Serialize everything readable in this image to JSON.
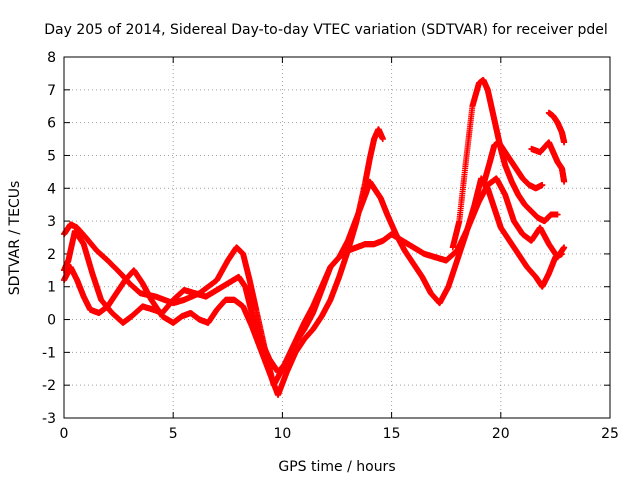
{
  "chart_data": {
    "type": "scatter",
    "title": "Day 205 of 2014, Sidereal Day-to-day VTEC variation (SDTVAR) for receiver pdel",
    "xlabel": "GPS time / hours",
    "ylabel": "SDTVAR / TECUs",
    "xlim": [
      0,
      25
    ],
    "ylim": [
      -3,
      8
    ],
    "xticks": [
      "0",
      "5",
      "10",
      "15",
      "20",
      "25"
    ],
    "yticks": [
      "-3",
      "-2",
      "-1",
      "0",
      "1",
      "2",
      "3",
      "4",
      "5",
      "6",
      "7",
      "8"
    ],
    "grid": true,
    "marker": "+",
    "color": "#ff0000",
    "series": [
      {
        "x": [
          0.0,
          0.3,
          0.6,
          1.0,
          1.5,
          2.0,
          2.6,
          3.0,
          3.5,
          4.2,
          5.0,
          5.5,
          6.2,
          7.0,
          7.5,
          7.9,
          8.2,
          8.5,
          8.8,
          9.2,
          9.6,
          10.0,
          10.5,
          11.0,
          11.4,
          11.8,
          12.2,
          12.6,
          13.0,
          13.4,
          13.8,
          14.2,
          14.6,
          15.0,
          15.5,
          16.0,
          16.5,
          17.0,
          17.5,
          18.0,
          18.5,
          19.0,
          19.4,
          19.8,
          20.2,
          20.6,
          21.0,
          21.4,
          21.8,
          22.2,
          22.6,
          22.9
        ],
        "y": [
          2.6,
          2.9,
          2.8,
          2.5,
          2.1,
          1.8,
          1.4,
          1.1,
          0.8,
          0.7,
          0.5,
          0.6,
          0.8,
          1.2,
          1.8,
          2.2,
          2.0,
          1.2,
          0.3,
          -0.9,
          -2.0,
          -1.5,
          -0.8,
          -0.1,
          0.4,
          1.0,
          1.6,
          1.9,
          2.1,
          2.2,
          2.3,
          2.3,
          2.4,
          2.6,
          2.4,
          2.2,
          2.0,
          1.9,
          1.8,
          2.1,
          2.8,
          3.6,
          4.1,
          4.3,
          3.8,
          3.0,
          2.6,
          2.4,
          2.8,
          2.3,
          1.9,
          2.2
        ]
      },
      {
        "x": [
          0.0,
          0.2,
          0.5,
          0.9,
          1.3,
          1.7,
          2.2,
          2.7,
          3.1,
          3.6,
          4.1,
          4.5,
          5.0,
          5.5,
          6.0,
          6.5,
          7.0,
          7.5,
          8.0,
          8.3,
          8.6,
          9.0,
          9.4,
          9.8,
          10.2,
          10.6,
          11.0,
          11.4,
          11.8,
          12.2,
          12.6,
          13.0,
          13.4,
          13.8,
          14.0,
          14.2,
          14.5,
          14.8,
          15.2,
          15.6,
          16.0,
          16.4,
          16.8,
          17.2,
          17.6,
          18.0,
          18.4,
          18.8,
          19.1,
          19.4,
          19.7,
          20.0,
          20.4,
          20.8,
          21.2,
          21.6,
          21.9,
          22.2,
          22.5,
          22.8
        ],
        "y": [
          1.5,
          1.8,
          2.7,
          2.3,
          1.4,
          0.6,
          0.2,
          -0.1,
          0.1,
          0.4,
          0.3,
          0.2,
          0.6,
          0.9,
          0.8,
          0.7,
          0.9,
          1.1,
          1.3,
          1.0,
          0.2,
          -0.6,
          -1.2,
          -1.6,
          -1.3,
          -0.7,
          -0.3,
          0.2,
          0.9,
          1.6,
          1.9,
          2.4,
          3.1,
          3.8,
          4.2,
          4.0,
          3.7,
          3.2,
          2.6,
          2.1,
          1.7,
          1.3,
          0.8,
          0.5,
          1.0,
          1.8,
          2.6,
          3.5,
          4.3,
          4.0,
          3.4,
          2.8,
          2.4,
          2.0,
          1.6,
          1.3,
          1.0,
          1.4,
          1.9,
          2.0
        ]
      },
      {
        "x": [
          0.0,
          0.3,
          0.6,
          0.9,
          1.2,
          1.6,
          2.0,
          2.4,
          2.8,
          3.2,
          3.6,
          4.0,
          4.5,
          5.0,
          5.4,
          5.8,
          6.2,
          6.6,
          7.0,
          7.4,
          7.8,
          8.2,
          8.6,
          9.0,
          9.4,
          9.8,
          10.2,
          10.6,
          11.0,
          11.4,
          11.8,
          12.2,
          12.6,
          13.0,
          13.4,
          13.8,
          14.0,
          14.2,
          14.4,
          14.6
        ],
        "y": [
          1.2,
          1.6,
          1.2,
          0.7,
          0.3,
          0.2,
          0.4,
          0.8,
          1.2,
          1.5,
          1.1,
          0.6,
          0.1,
          -0.1,
          0.1,
          0.2,
          0.0,
          -0.1,
          0.3,
          0.6,
          0.6,
          0.4,
          -0.2,
          -0.9,
          -1.6,
          -2.3,
          -1.6,
          -1.0,
          -0.6,
          -0.3,
          0.1,
          0.6,
          1.3,
          2.1,
          3.0,
          4.2,
          4.9,
          5.5,
          5.8,
          5.5
        ]
      },
      {
        "x": [
          17.8,
          18.1,
          18.4,
          18.7,
          19.0,
          19.2,
          19.4,
          19.6,
          19.8,
          20.0,
          20.2,
          20.5,
          20.8,
          21.1,
          21.4,
          21.7,
          22.0,
          22.3,
          22.6
        ],
        "y": [
          2.2,
          3.0,
          4.8,
          6.5,
          7.2,
          7.3,
          7.0,
          6.4,
          5.8,
          5.2,
          4.7,
          4.2,
          3.8,
          3.5,
          3.3,
          3.1,
          3.0,
          3.2,
          3.2
        ]
      },
      {
        "x": [
          19.2,
          19.5,
          19.7,
          19.9,
          20.1,
          20.4,
          20.7,
          21.0,
          21.3,
          21.6,
          21.9
        ],
        "y": [
          4.1,
          4.8,
          5.3,
          5.4,
          5.2,
          4.9,
          4.6,
          4.3,
          4.1,
          4.0,
          4.1
        ]
      },
      {
        "x": [
          21.4,
          21.8,
          22.2,
          22.4,
          22.6,
          22.8,
          22.9
        ],
        "y": [
          5.2,
          5.1,
          5.4,
          5.1,
          4.8,
          4.6,
          4.2
        ]
      },
      {
        "x": [
          22.2,
          22.4,
          22.6,
          22.8,
          22.9
        ],
        "y": [
          6.3,
          6.2,
          6.0,
          5.7,
          5.4
        ]
      }
    ]
  }
}
